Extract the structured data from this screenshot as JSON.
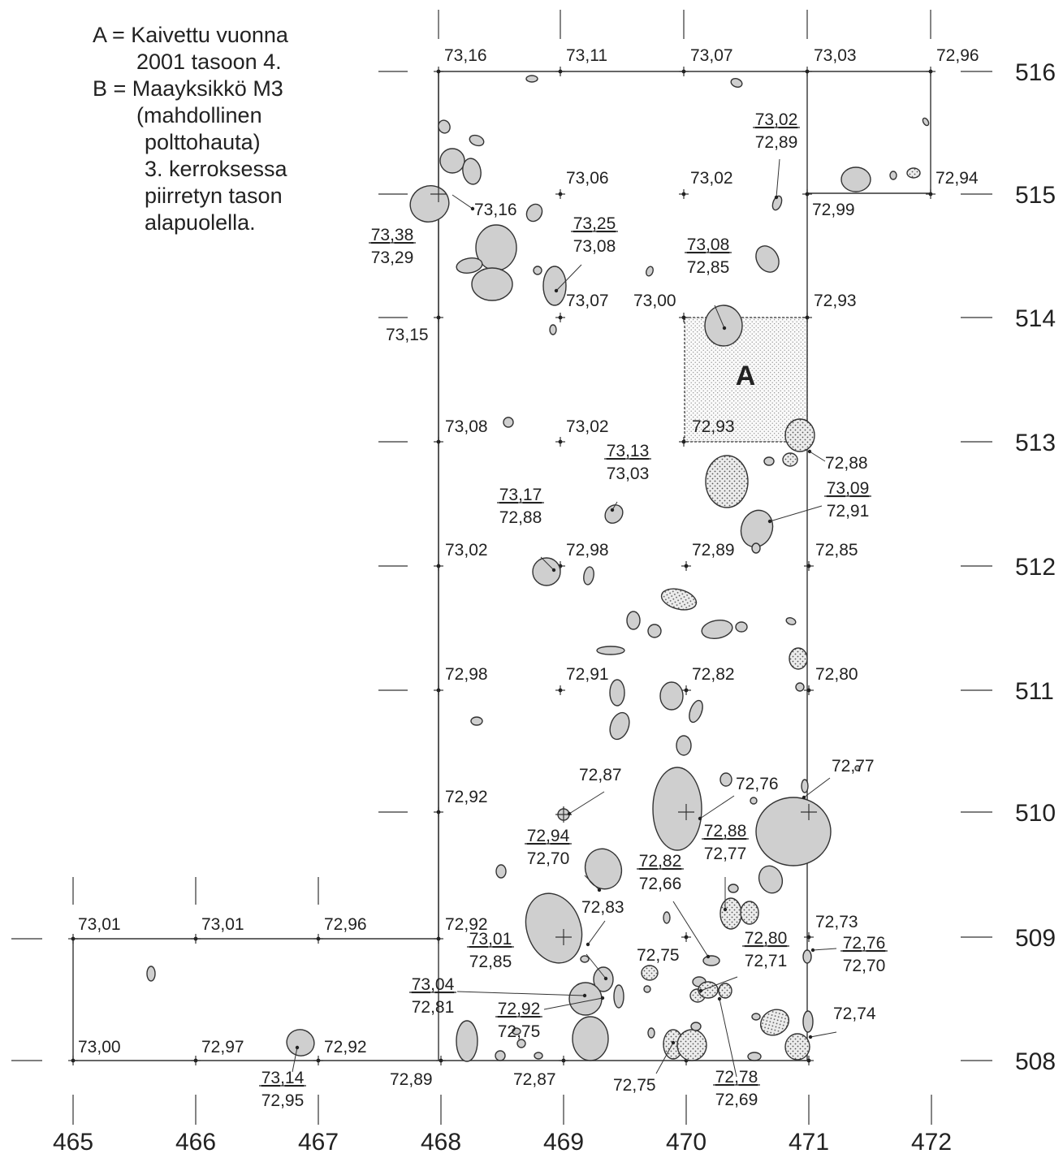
{
  "legend": [
    "A = Kaivettu vuonna",
    "2001 tasoon 4.",
    "B = Maayksikkö M3",
    "(mahdollinen",
    "polttohauta)",
    "3. kerroksessa",
    "piirretyn tason",
    "alapuolella."
  ],
  "area_label": "A",
  "x_axis": [
    "465",
    "466",
    "467",
    "468",
    "469",
    "470",
    "471",
    "472"
  ],
  "y_axis": [
    "516",
    "515",
    "514",
    "513",
    "512",
    "511",
    "510",
    "509",
    "508"
  ],
  "grid_levels": [
    "73,16",
    "73,11",
    "73,07",
    "73,03",
    "72,96",
    "73,06",
    "73,02",
    "72,94",
    "73,16",
    "72,99",
    "73,15",
    "73,07",
    "73,00",
    "72,93",
    "73,08",
    "73,02",
    "72,93",
    "72,88",
    "73,02",
    "72,98",
    "72,89",
    "72,85",
    "72,98",
    "72,91",
    "72,82",
    "72,80",
    "72,92",
    "72,87",
    "72,76",
    "72,77",
    "73,01",
    "73,01",
    "72,96",
    "72,92",
    "72,83",
    "72,73",
    "72,75",
    "73,00",
    "72,97",
    "72,92",
    "72,89",
    "72,87",
    "72,75",
    "72,74"
  ],
  "fraction_levels": [
    {
      "top": "73,38",
      "bottom": "73,29"
    },
    {
      "top": "73,25",
      "bottom": "73,08"
    },
    {
      "top": "73,08",
      "bottom": "72,85"
    },
    {
      "top": "73,02",
      "bottom": "72,89"
    },
    {
      "top": "73,13",
      "bottom": "73,03"
    },
    {
      "top": "73,17",
      "bottom": "72,88"
    },
    {
      "top": "73,09",
      "bottom": "72,91"
    },
    {
      "top": "72,94",
      "bottom": "72,70"
    },
    {
      "top": "72,88",
      "bottom": "72,77"
    },
    {
      "top": "72,82",
      "bottom": "72,66"
    },
    {
      "top": "73,01",
      "bottom": "72,85"
    },
    {
      "top": "72,80",
      "bottom": "72,71"
    },
    {
      "top": "72,76",
      "bottom": "72,70"
    },
    {
      "top": "73,04",
      "bottom": "72,81"
    },
    {
      "top": "72,92",
      "bottom": "72,75"
    },
    {
      "top": "73,14",
      "bottom": "72,95"
    },
    {
      "top": "72,78",
      "bottom": "72,69"
    }
  ]
}
